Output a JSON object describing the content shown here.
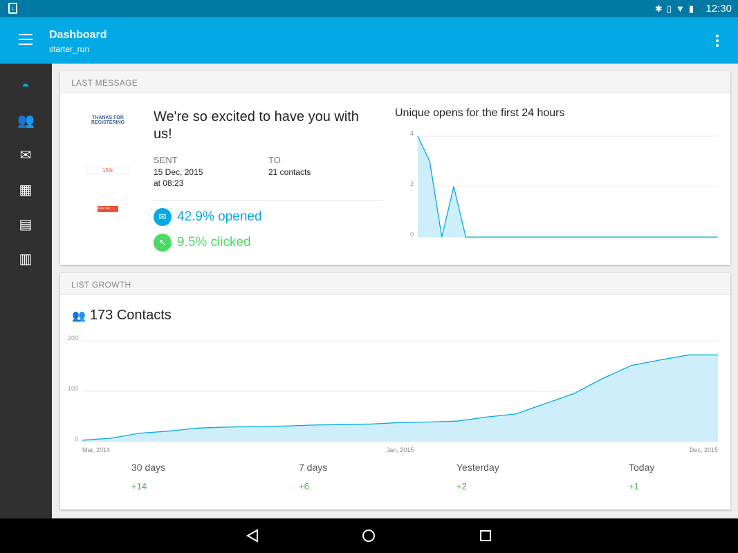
{
  "status": {
    "time": "12:30"
  },
  "appbar": {
    "title": "Dashboard",
    "subtitle": "starter_run"
  },
  "sidebar": {
    "items": [
      "dashboard-icon",
      "contacts-icon",
      "messages-icon",
      "calendar-icon",
      "forms-icon",
      "templates-icon"
    ]
  },
  "last_message": {
    "header": "LAST MESSAGE",
    "thumbnail": {
      "heading": "THANKS FOR REGISTERING",
      "discount": "15%",
      "button": "Shop now"
    },
    "title": "We're so excited to have you with us!",
    "sent_label": "SENT",
    "sent_date": "15 Dec, 2015",
    "sent_time": "at 08:23",
    "to_label": "TO",
    "to_value": "21 contacts",
    "opened": "42.9% opened",
    "clicked": "9.5% clicked",
    "colors": {
      "opened": "#03a9e4",
      "clicked": "#4cd964"
    }
  },
  "chart_data": [
    {
      "type": "area",
      "title": "Unique opens for the first 24 hours",
      "ylim": [
        0,
        4
      ],
      "yticks": [
        0,
        2,
        4
      ],
      "values": [
        4,
        3,
        0,
        2,
        0,
        0,
        0,
        0,
        0,
        0,
        0,
        0,
        0,
        0,
        0,
        0,
        0,
        0,
        0,
        0,
        0,
        0,
        0,
        0,
        0,
        0
      ]
    },
    {
      "type": "area",
      "ylim": [
        0,
        200
      ],
      "yticks": [
        0,
        100,
        200
      ],
      "xticks": [
        "Mar, 2014",
        "Jan, 2015",
        "Dec, 2015"
      ],
      "values": [
        3,
        7,
        17,
        21,
        27,
        29,
        30,
        31,
        33,
        34,
        35,
        38,
        39,
        41,
        49,
        55,
        75,
        95,
        125,
        151,
        162,
        172,
        172
      ]
    }
  ],
  "list_growth": {
    "header": "LIST GROWTH",
    "contacts": "173 Contacts",
    "periods": [
      {
        "label": "30 days",
        "value": "+14"
      },
      {
        "label": "7 days",
        "value": "+6"
      },
      {
        "label": "Yesterday",
        "value": "+2"
      },
      {
        "label": "Today",
        "value": "+1"
      }
    ]
  }
}
